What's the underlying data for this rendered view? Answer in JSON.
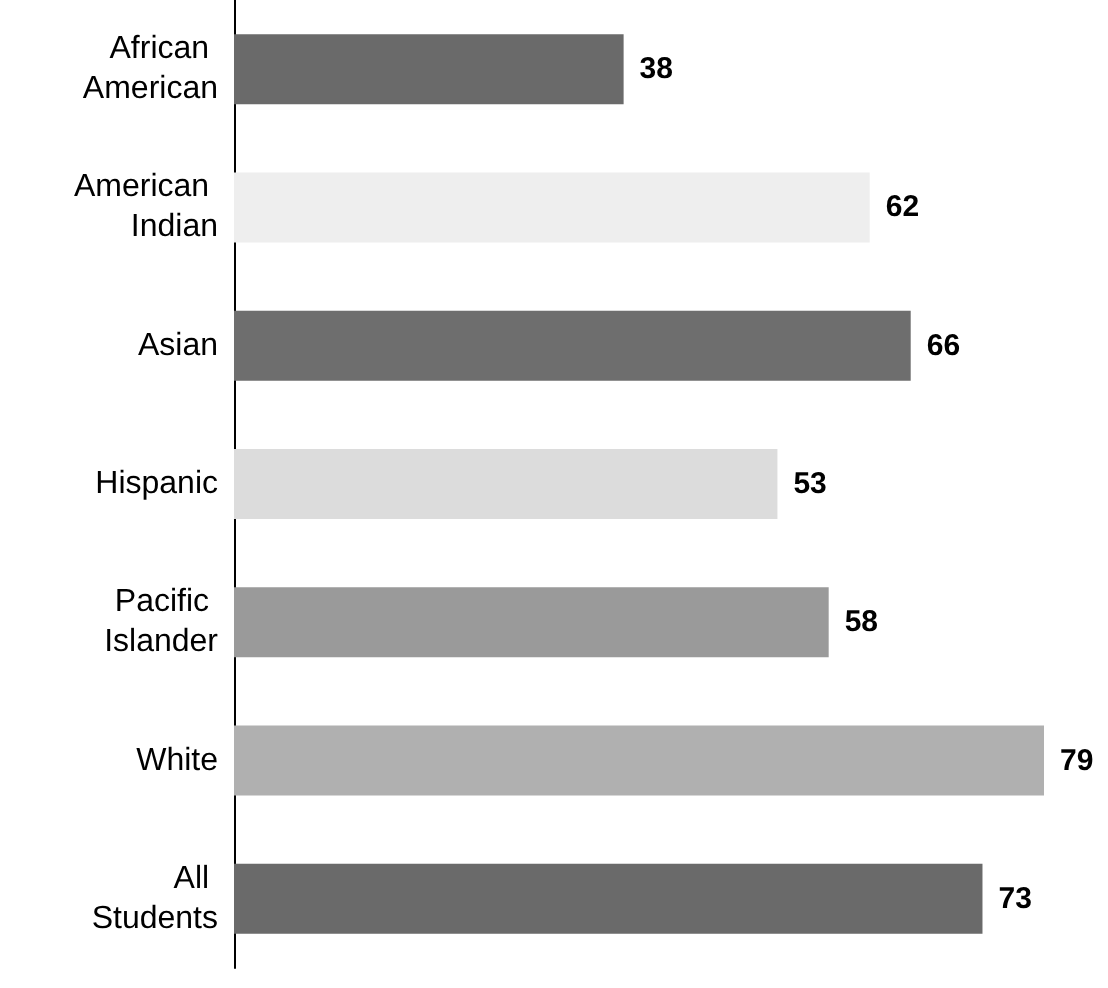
{
  "chart_data": {
    "type": "bar",
    "orientation": "horizontal",
    "data_labels": true,
    "categories": [
      "African American",
      "American Indian",
      "Asian",
      "Hispanic",
      "Pacific Islander",
      "White",
      "All Students"
    ],
    "values": [
      38,
      62,
      66,
      53,
      58,
      79,
      73
    ],
    "colors": [
      "#6a6a6a",
      "#eeeeee",
      "#6e6e6e",
      "#dcdcdc",
      "#9a9a9a",
      "#b0b0b0",
      "#6a6a6a"
    ],
    "grid": false
  }
}
